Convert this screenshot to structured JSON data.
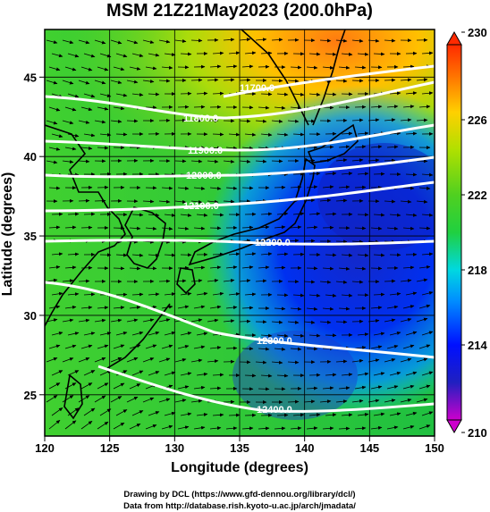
{
  "title": "MSM 21Z21May2023 (200.0hPa)",
  "x_axis_title": "Longitude (degrees)",
  "y_axis_title": "Latitude  (degrees)",
  "x_ticks": [
    "120",
    "125",
    "130",
    "135",
    "140",
    "145",
    "150"
  ],
  "y_ticks": [
    "25",
    "30",
    "35",
    "40",
    "45"
  ],
  "colorbar_ticks": [
    "210",
    "214",
    "218",
    "222",
    "226",
    "230"
  ],
  "credits": {
    "line1": "Drawing by DCL (https://www.gfd-dennou.org/library/dcl/)",
    "line2": "Data from http://database.rish.kyoto-u.ac.jp/arch/jmadata/"
  },
  "contour_labels": [
    "11700.0",
    "11800.0",
    "11900.0",
    "12000.0",
    "12100.0",
    "12200.0",
    "12300.0",
    "12400.0"
  ],
  "colors": {
    "background": "#ffffff",
    "contour": "#ffffff",
    "coastline": "#000000",
    "colorbar_stops": [
      "#cc00cc",
      "#2020c0",
      "#0000ff",
      "#00b4ff",
      "#00e0a0",
      "#20d020",
      "#a8e000",
      "#ffd000",
      "#ff7000",
      "#ff2a00"
    ]
  },
  "chart_data": {
    "type": "heatmap",
    "title": "MSM 21Z21May2023 (200.0hPa)",
    "xlabel": "Longitude (degrees)",
    "ylabel": "Latitude  (degrees)",
    "xlim": [
      120,
      150
    ],
    "ylim": [
      22.4,
      48
    ],
    "x_ticks": [
      120,
      125,
      130,
      135,
      140,
      145,
      150
    ],
    "y_ticks": [
      25,
      30,
      35,
      40,
      45
    ],
    "colorbar": {
      "min": 210,
      "max": 230,
      "ticks": [
        210,
        214,
        218,
        222,
        226,
        230
      ]
    },
    "field_samples": [
      {
        "lon": 140,
        "lat": 46,
        "value": 227
      },
      {
        "lon": 123,
        "lat": 43,
        "value": 224
      },
      {
        "lon": 123,
        "lat": 33,
        "value": 221
      },
      {
        "lon": 145,
        "lat": 39,
        "value": 213
      },
      {
        "lon": 147,
        "lat": 27,
        "value": 214
      },
      {
        "lon": 132,
        "lat": 26,
        "value": 221
      }
    ],
    "contours": [
      {
        "label": "11700.0",
        "label_lon": 138,
        "label_lat": 45.2
      },
      {
        "label": "11800.0",
        "label_lon": 131.5,
        "label_lat": 43.3
      },
      {
        "label": "11900.0",
        "label_lon": 132.5,
        "label_lat": 41.5
      },
      {
        "label": "12000.0",
        "label_lon": 131.5,
        "label_lat": 39.7
      },
      {
        "label": "12100.0",
        "label_lon": 131.5,
        "label_lat": 37.4
      },
      {
        "label": "12200.0",
        "label_lon": 137.5,
        "label_lat": 35.2
      },
      {
        "label": "12300.0",
        "label_lon": 137.5,
        "label_lat": 28.5
      },
      {
        "label": "12400.0",
        "label_lon": 137.5,
        "label_lat": 23.8
      }
    ]
  }
}
